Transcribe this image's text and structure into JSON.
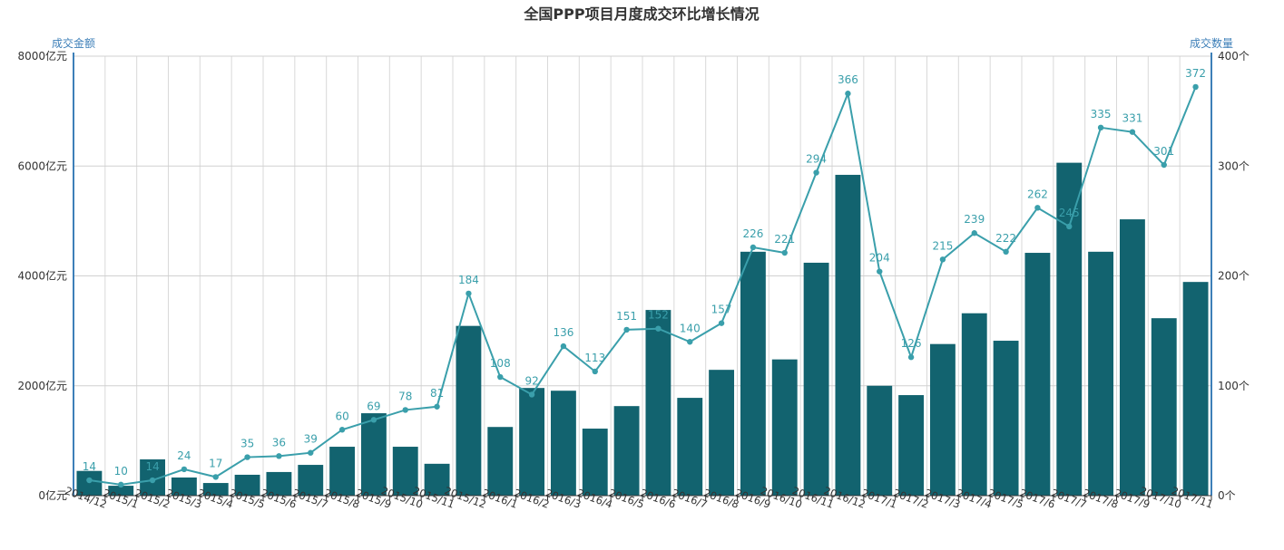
{
  "chart_data": {
    "type": "bar+line",
    "title": "全国PPP项目月度成交环比增长情况",
    "y_left_label": "成交金额",
    "y_right_label": "成交数量",
    "y_left_ticks": [
      "0亿元",
      "2000亿元",
      "4000亿元",
      "6000亿元",
      "8000亿元"
    ],
    "y_right_ticks": [
      "0个",
      "100个",
      "200个",
      "300个",
      "400个"
    ],
    "y_left_range": [
      0,
      8000
    ],
    "y_right_range": [
      0,
      400
    ],
    "grid": true,
    "categories": [
      "2014/12",
      "2015/1",
      "2015/2",
      "2015/3",
      "2015/4",
      "2015/5",
      "2015/6",
      "2015/7",
      "2015/8",
      "2015/9",
      "2015/10",
      "2015/11",
      "2015/12",
      "2016/1",
      "2016/2",
      "2016/3",
      "2016/4",
      "2016/5",
      "2016/6",
      "2016/7",
      "2016/8",
      "2016/9",
      "2016/10",
      "2016/11",
      "2016/12",
      "2017/1",
      "2017/2",
      "2017/3",
      "2017/4",
      "2017/5",
      "2017/6",
      "2017/7",
      "2017/8",
      "2017/9",
      "2017/10",
      "2017/11"
    ],
    "series": [
      {
        "name": "成交金额",
        "type": "bar",
        "axis": "left",
        "color": "#12636f",
        "values": [
          450,
          180,
          660,
          330,
          230,
          380,
          430,
          560,
          890,
          1500,
          890,
          580,
          3090,
          1250,
          1960,
          1910,
          1220,
          1630,
          3380,
          1780,
          2290,
          4440,
          2480,
          4240,
          5840,
          2000,
          1830,
          2760,
          3320,
          2820,
          4420,
          6060,
          4440,
          5030,
          3230,
          3890
        ]
      },
      {
        "name": "成交数量",
        "type": "line",
        "axis": "right",
        "color": "#3a9fab",
        "values": [
          14,
          10,
          14,
          24,
          17,
          35,
          36,
          39,
          60,
          69,
          78,
          81,
          184,
          108,
          92,
          136,
          113,
          151,
          152,
          140,
          157,
          226,
          221,
          294,
          366,
          204,
          126,
          215,
          239,
          222,
          262,
          245,
          335,
          331,
          301,
          372
        ]
      }
    ]
  }
}
